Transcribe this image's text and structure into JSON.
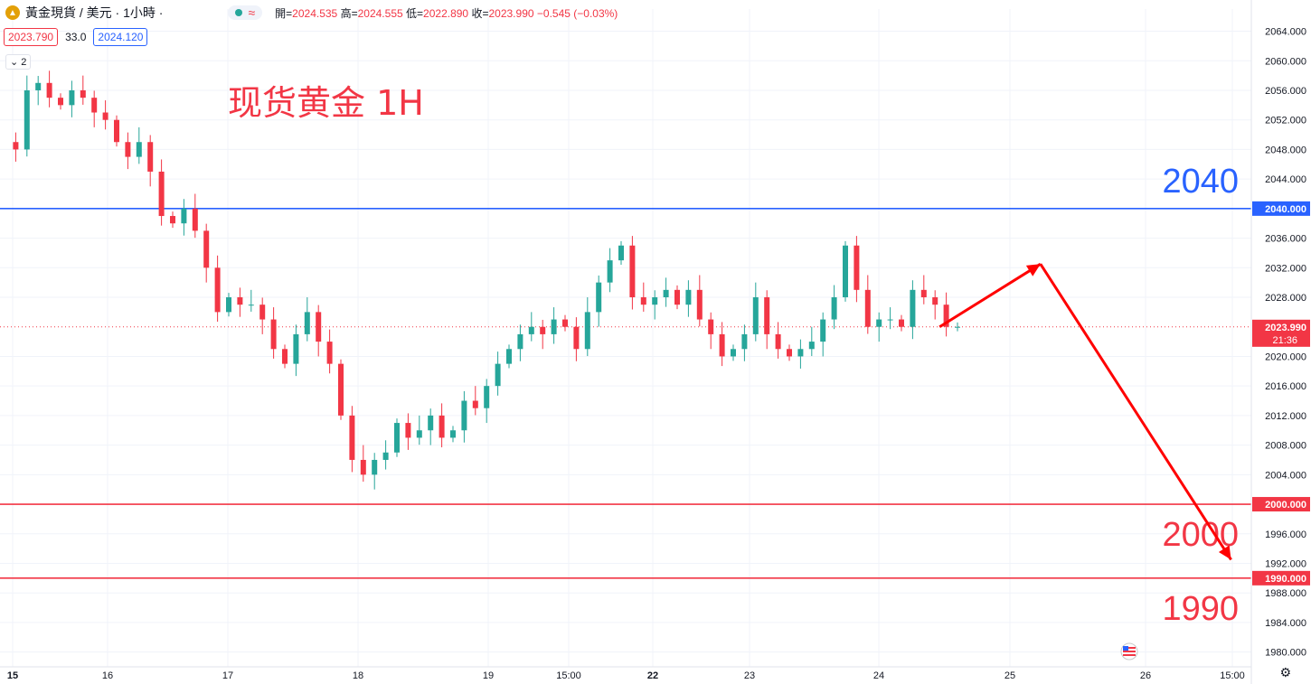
{
  "header": {
    "symbol": "黃金現貨 / 美元 · 1小時 ·",
    "open_label": "開",
    "open": "2024.535",
    "high_label": "高",
    "high": "2024.555",
    "low_label": "低",
    "low": "2022.890",
    "close_label": "收",
    "close": "2023.990",
    "change": "−0.545 (−0.03%)",
    "logo_icon": "gold-coin-icon",
    "status_icon": "market-open-dot-icon",
    "wave_icon": "wave-icon"
  },
  "quote": {
    "sell": "2023.790",
    "spread": "33.0",
    "buy": "2024.120"
  },
  "indicator_toggle": "2",
  "colors": {
    "up": "#26a69a",
    "down": "#f23645",
    "blue": "#2962ff",
    "arrow": "#ff0000"
  },
  "chart_data": {
    "type": "candlestick",
    "title": "现货黄金 1H",
    "y_range": [
      1978,
      2067
    ],
    "y_ticks": [
      "2064.000",
      "2060.000",
      "2056.000",
      "2052.000",
      "2048.000",
      "2044.000",
      "2036.000",
      "2032.000",
      "2028.000",
      "2020.000",
      "2016.000",
      "2012.000",
      "2008.000",
      "2004.000",
      "1996.000",
      "1992.000",
      "1988.000",
      "1984.000",
      "1980.000"
    ],
    "x_labels": [
      "15",
      "16",
      "17",
      "18",
      "19",
      "15:00",
      "22",
      "23",
      "24",
      "25",
      "26",
      "15:00"
    ],
    "x_label_bold": [
      "15",
      "22"
    ],
    "keypoints": [
      2049,
      2048,
      2056,
      2057,
      2055,
      2054,
      2056,
      2055,
      2053,
      2052,
      2049,
      2047,
      2049,
      2045,
      2039,
      2038,
      2040,
      2037,
      2032,
      2026,
      2028,
      2027,
      2027,
      2025,
      2021,
      2019,
      2023,
      2026,
      2022,
      2019,
      2012,
      2006,
      2004,
      2006,
      2007,
      2011,
      2009,
      2010,
      2012,
      2009,
      2010,
      2014,
      2013,
      2016,
      2019,
      2021,
      2023,
      2024,
      2023,
      2025,
      2024,
      2021,
      2026,
      2030,
      2033,
      2035,
      2028,
      2027,
      2028,
      2029,
      2027,
      2029,
      2025,
      2023,
      2020,
      2021,
      2023,
      2028,
      2023,
      2021,
      2020,
      2021,
      2022,
      2025,
      2028,
      2035,
      2029,
      2024,
      2025,
      2025,
      2024,
      2029,
      2028,
      2027,
      2024,
      2024
    ],
    "last_index": 83,
    "levels": [
      {
        "value": 2040,
        "label": "2040",
        "axis_label": "2040.000",
        "color": "#2962ff"
      },
      {
        "value": 2000,
        "label": "2000",
        "axis_label": "2000.000",
        "color": "#f23645"
      },
      {
        "value": 1990,
        "label": "1990",
        "axis_label": "1990.000",
        "color": "#f23645"
      }
    ],
    "last_price": {
      "value": 2023.99,
      "label": "2023.990",
      "countdown": "21:36"
    },
    "forecast_path": [
      {
        "x_bar": 83,
        "y": 2024
      },
      {
        "x_bar": 92,
        "y": 2032.5
      },
      {
        "x_bar": 109,
        "y": 1992.5
      }
    ],
    "flag_icon": "us-flag-icon"
  }
}
